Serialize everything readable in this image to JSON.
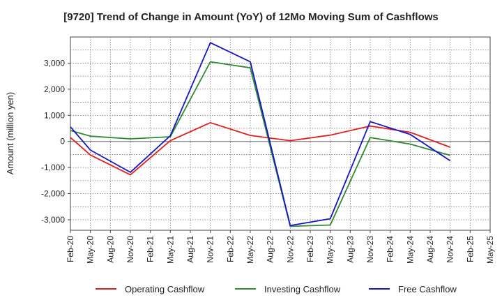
{
  "chart_data": {
    "type": "line",
    "title": "[9720]  Trend of Change in Amount (YoY) of 12Mo Moving Sum of Cashflows",
    "xlabel": "",
    "ylabel": "Amount (million yen)",
    "ylim": [
      -3400,
      4000
    ],
    "yticks": [
      -3000,
      -2000,
      -1000,
      0,
      1000,
      2000,
      3000
    ],
    "ytick_labels": [
      "-3,000",
      "-2,000",
      "-1,000",
      "0",
      "1,000",
      "2,000",
      "3,000"
    ],
    "categories": [
      "Feb-20",
      "May-20",
      "Aug-20",
      "Nov-20",
      "Feb-21",
      "May-21",
      "Aug-21",
      "Nov-21",
      "Feb-22",
      "May-22",
      "Aug-22",
      "Nov-22",
      "Feb-23",
      "May-23",
      "Aug-23",
      "Nov-23",
      "Feb-24",
      "May-24",
      "Aug-24",
      "Nov-24",
      "Feb-25",
      "May-25"
    ],
    "series": [
      {
        "name": "Operating Cashflow",
        "color": "#e0201b",
        "values": [
          150,
          -520,
          null,
          -1280,
          null,
          30,
          null,
          720,
          null,
          230,
          null,
          30,
          null,
          240,
          null,
          590,
          null,
          350,
          null,
          -220,
          null,
          null
        ]
      },
      {
        "name": "Investing Cashflow",
        "color": "#2e8b2e",
        "values": [
          420,
          200,
          null,
          100,
          null,
          180,
          null,
          3050,
          null,
          2820,
          null,
          -3250,
          null,
          -3200,
          null,
          150,
          null,
          -100,
          null,
          -530,
          null,
          null
        ]
      },
      {
        "name": "Free Cashflow",
        "color": "#1515c8",
        "values": [
          560,
          -330,
          null,
          -1180,
          null,
          220,
          null,
          3780,
          null,
          3050,
          null,
          -3220,
          null,
          -2960,
          null,
          760,
          null,
          270,
          null,
          -740,
          null,
          null
        ]
      }
    ],
    "grid": true,
    "legend_position": "bottom"
  }
}
